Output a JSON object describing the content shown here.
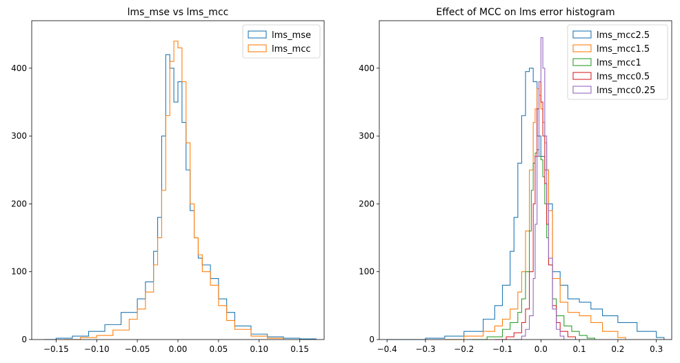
{
  "chart_data": [
    {
      "type": "histogram",
      "title": "lms_mse vs lms_mcc",
      "xlim": [
        -0.18,
        0.18
      ],
      "ylim": [
        0,
        470
      ],
      "xticks": [
        -0.15,
        -0.1,
        -0.05,
        0.0,
        0.05,
        0.1,
        0.15
      ],
      "xtick_labels": [
        "−0.15",
        "−0.10",
        "−0.05",
        "0.00",
        "0.05",
        "0.10",
        "0.15"
      ],
      "yticks": [
        0,
        100,
        200,
        300,
        400
      ],
      "ytick_labels": [
        "0",
        "100",
        "200",
        "300",
        "400"
      ],
      "legend_position": "top-right",
      "series": [
        {
          "name": "lms_mse",
          "color": "#1f77b4",
          "x": [
            -0.165,
            -0.15,
            -0.13,
            -0.11,
            -0.09,
            -0.07,
            -0.05,
            -0.04,
            -0.03,
            -0.025,
            -0.02,
            -0.015,
            -0.01,
            -0.005,
            0.0,
            0.005,
            0.01,
            0.015,
            0.02,
            0.025,
            0.03,
            0.04,
            0.05,
            0.06,
            0.07,
            0.09,
            0.11,
            0.13,
            0.15,
            0.17
          ],
          "y": [
            0,
            2,
            5,
            12,
            22,
            40,
            60,
            85,
            130,
            180,
            300,
            420,
            400,
            350,
            380,
            320,
            250,
            190,
            150,
            120,
            110,
            90,
            60,
            40,
            20,
            8,
            4,
            2,
            1,
            0
          ]
        },
        {
          "name": "lms_mcc",
          "color": "#ff7f0e",
          "x": [
            -0.14,
            -0.12,
            -0.1,
            -0.08,
            -0.06,
            -0.05,
            -0.04,
            -0.03,
            -0.025,
            -0.02,
            -0.015,
            -0.01,
            -0.005,
            0.0,
            0.005,
            0.01,
            0.015,
            0.02,
            0.025,
            0.03,
            0.04,
            0.05,
            0.06,
            0.07,
            0.09,
            0.11,
            0.13
          ],
          "y": [
            0,
            3,
            6,
            14,
            30,
            45,
            70,
            110,
            150,
            220,
            330,
            410,
            440,
            430,
            380,
            290,
            200,
            150,
            125,
            100,
            80,
            50,
            28,
            15,
            5,
            2,
            0
          ]
        }
      ]
    },
    {
      "type": "histogram",
      "title": "Effect of MCC on lms error histogram",
      "xlim": [
        -0.42,
        0.34
      ],
      "ylim": [
        0,
        470
      ],
      "xticks": [
        -0.4,
        -0.3,
        -0.2,
        -0.1,
        0.0,
        0.1,
        0.2,
        0.3
      ],
      "xtick_labels": [
        "−0.4",
        "−0.3",
        "−0.2",
        "−0.1",
        "0.0",
        "0.1",
        "0.2",
        "0.3"
      ],
      "yticks": [
        0,
        100,
        200,
        300,
        400
      ],
      "ytick_labels": [
        "0",
        "100",
        "200",
        "300",
        "400"
      ],
      "legend_position": "top-right",
      "series": [
        {
          "name": "lms_mcc2.5",
          "color": "#1f77b4",
          "x": [
            -0.4,
            -0.3,
            -0.25,
            -0.2,
            -0.15,
            -0.12,
            -0.1,
            -0.08,
            -0.07,
            -0.06,
            -0.05,
            -0.04,
            -0.03,
            -0.02,
            -0.01,
            0.0,
            0.01,
            0.02,
            0.03,
            0.05,
            0.07,
            0.1,
            0.13,
            0.16,
            0.2,
            0.25,
            0.3,
            0.32
          ],
          "y": [
            0,
            2,
            5,
            12,
            30,
            50,
            80,
            130,
            180,
            260,
            330,
            395,
            400,
            380,
            300,
            270,
            250,
            200,
            100,
            80,
            60,
            55,
            45,
            35,
            25,
            12,
            3,
            0
          ]
        },
        {
          "name": "lms_mcc1.5",
          "color": "#ff7f0e",
          "x": [
            -0.25,
            -0.2,
            -0.15,
            -0.12,
            -0.1,
            -0.08,
            -0.06,
            -0.05,
            -0.04,
            -0.03,
            -0.02,
            -0.015,
            -0.01,
            -0.005,
            0.0,
            0.005,
            0.01,
            0.015,
            0.02,
            0.03,
            0.05,
            0.07,
            0.1,
            0.13,
            0.16,
            0.2,
            0.22
          ],
          "y": [
            0,
            5,
            12,
            20,
            30,
            45,
            70,
            100,
            160,
            250,
            320,
            340,
            370,
            360,
            340,
            320,
            290,
            250,
            190,
            90,
            55,
            40,
            35,
            25,
            12,
            3,
            0
          ]
        },
        {
          "name": "lms_mcc1",
          "color": "#2ca02c",
          "x": [
            -0.18,
            -0.14,
            -0.1,
            -0.08,
            -0.06,
            -0.05,
            -0.04,
            -0.03,
            -0.025,
            -0.02,
            -0.015,
            -0.01,
            -0.005,
            0.0,
            0.005,
            0.01,
            0.015,
            0.02,
            0.03,
            0.04,
            0.06,
            0.08,
            0.1,
            0.12,
            0.14
          ],
          "y": [
            0,
            4,
            15,
            25,
            40,
            60,
            100,
            160,
            220,
            260,
            275,
            280,
            270,
            265,
            240,
            200,
            150,
            110,
            60,
            35,
            20,
            12,
            6,
            2,
            0
          ]
        },
        {
          "name": "lms_mcc0.5",
          "color": "#d62728",
          "x": [
            -0.12,
            -0.09,
            -0.07,
            -0.05,
            -0.04,
            -0.03,
            -0.02,
            -0.015,
            -0.01,
            -0.005,
            0.0,
            0.005,
            0.01,
            0.015,
            0.02,
            0.03,
            0.04,
            0.05,
            0.07,
            0.09
          ],
          "y": [
            0,
            4,
            10,
            25,
            45,
            100,
            200,
            270,
            340,
            380,
            350,
            300,
            230,
            170,
            110,
            50,
            25,
            12,
            4,
            0
          ]
        },
        {
          "name": "lms_mcc0.25",
          "color": "#9467bd",
          "x": [
            -0.07,
            -0.05,
            -0.04,
            -0.03,
            -0.02,
            -0.015,
            -0.01,
            -0.005,
            0.0,
            0.005,
            0.01,
            0.015,
            0.02,
            0.03,
            0.04,
            0.05,
            0.06
          ],
          "y": [
            0,
            5,
            15,
            35,
            90,
            170,
            270,
            380,
            445,
            400,
            300,
            200,
            120,
            45,
            15,
            5,
            0
          ]
        }
      ]
    }
  ]
}
